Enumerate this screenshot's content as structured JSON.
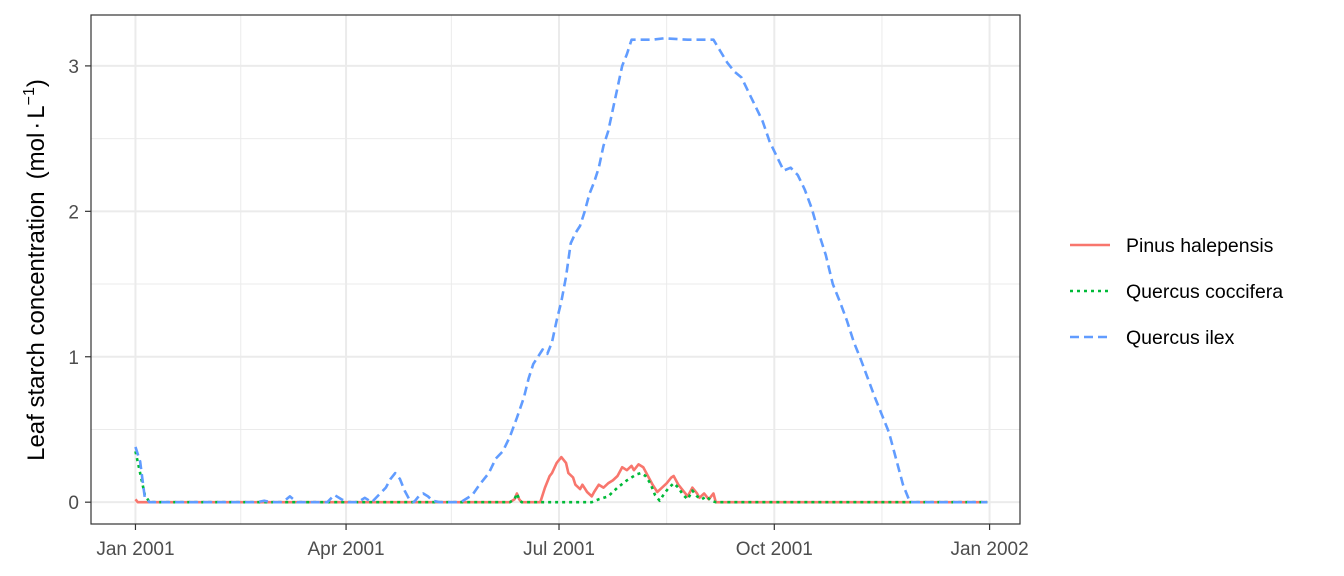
{
  "chart_data": {
    "type": "line",
    "title": "",
    "xlabel": "",
    "ylabel": "Leaf starch concentration (mol·L⁻¹)",
    "ylabel_parts": {
      "text": "Leaf starch concentration",
      "unit_prefix": "(mol",
      "unit_dot": "·",
      "unit_L": "L",
      "unit_exp": "−1",
      "unit_suffix": ")"
    },
    "x_axis": {
      "type": "date",
      "range": [
        "2000-12-13",
        "2002-01-14"
      ],
      "ticks": [
        "2001-01-01",
        "2001-04-01",
        "2001-07-01",
        "2001-10-01",
        "2002-01-01"
      ],
      "tick_labels": [
        "Jan 2001",
        "Apr 2001",
        "Jul 2001",
        "Oct 2001",
        "Jan 2002"
      ],
      "minor_ticks": [
        "2001-02-15",
        "2001-05-16",
        "2001-08-16",
        "2001-11-16"
      ]
    },
    "y_axis": {
      "range": [
        -0.15,
        3.35
      ],
      "ticks": [
        0,
        1,
        2,
        3
      ],
      "tick_labels": [
        "0",
        "1",
        "2",
        "3"
      ],
      "minor_ticks": [
        0.5,
        1.5,
        2.5
      ]
    },
    "grid": true,
    "legend_position": "right",
    "series": [
      {
        "name": "Pinus halepensis",
        "color": "#F8766D",
        "dash": "solid",
        "points": [
          [
            "2001-01-01",
            0.02
          ],
          [
            "2001-01-02",
            0.0
          ],
          [
            "2001-06-10",
            0.0
          ],
          [
            "2001-06-12",
            0.02
          ],
          [
            "2001-06-13",
            0.06
          ],
          [
            "2001-06-14",
            0.02
          ],
          [
            "2001-06-15",
            0.0
          ],
          [
            "2001-06-23",
            0.0
          ],
          [
            "2001-06-25",
            0.1
          ],
          [
            "2001-06-27",
            0.18
          ],
          [
            "2001-06-28",
            0.2
          ],
          [
            "2001-06-30",
            0.27
          ],
          [
            "2001-07-02",
            0.31
          ],
          [
            "2001-07-04",
            0.27
          ],
          [
            "2001-07-05",
            0.2
          ],
          [
            "2001-07-07",
            0.17
          ],
          [
            "2001-07-08",
            0.12
          ],
          [
            "2001-07-10",
            0.09
          ],
          [
            "2001-07-11",
            0.12
          ],
          [
            "2001-07-13",
            0.07
          ],
          [
            "2001-07-15",
            0.04
          ],
          [
            "2001-07-16",
            0.07
          ],
          [
            "2001-07-18",
            0.12
          ],
          [
            "2001-07-20",
            0.1
          ],
          [
            "2001-07-22",
            0.13
          ],
          [
            "2001-07-24",
            0.15
          ],
          [
            "2001-07-26",
            0.18
          ],
          [
            "2001-07-28",
            0.24
          ],
          [
            "2001-07-30",
            0.22
          ],
          [
            "2001-08-01",
            0.25
          ],
          [
            "2001-08-02",
            0.22
          ],
          [
            "2001-08-04",
            0.26
          ],
          [
            "2001-08-06",
            0.24
          ],
          [
            "2001-08-08",
            0.18
          ],
          [
            "2001-08-10",
            0.12
          ],
          [
            "2001-08-12",
            0.07
          ],
          [
            "2001-08-14",
            0.1
          ],
          [
            "2001-08-16",
            0.13
          ],
          [
            "2001-08-18",
            0.17
          ],
          [
            "2001-08-19",
            0.18
          ],
          [
            "2001-08-21",
            0.12
          ],
          [
            "2001-08-23",
            0.08
          ],
          [
            "2001-08-25",
            0.04
          ],
          [
            "2001-08-27",
            0.1
          ],
          [
            "2001-08-29",
            0.06
          ],
          [
            "2001-08-30",
            0.03
          ],
          [
            "2001-09-01",
            0.06
          ],
          [
            "2001-09-03",
            0.02
          ],
          [
            "2001-09-05",
            0.06
          ],
          [
            "2001-09-06",
            0.0
          ],
          [
            "2001-12-31",
            0.0
          ]
        ]
      },
      {
        "name": "Quercus coccifera",
        "color": "#00BA38",
        "dash": "dotted",
        "points": [
          [
            "2001-01-01",
            0.35
          ],
          [
            "2001-01-03",
            0.2
          ],
          [
            "2001-01-05",
            0.05
          ],
          [
            "2001-01-07",
            0.0
          ],
          [
            "2001-06-10",
            0.0
          ],
          [
            "2001-06-12",
            0.02
          ],
          [
            "2001-06-13",
            0.06
          ],
          [
            "2001-06-14",
            0.02
          ],
          [
            "2001-06-15",
            0.0
          ],
          [
            "2001-07-15",
            0.0
          ],
          [
            "2001-07-18",
            0.02
          ],
          [
            "2001-07-22",
            0.04
          ],
          [
            "2001-07-26",
            0.1
          ],
          [
            "2001-07-30",
            0.15
          ],
          [
            "2001-08-03",
            0.19
          ],
          [
            "2001-08-05",
            0.2
          ],
          [
            "2001-08-07",
            0.18
          ],
          [
            "2001-08-09",
            0.13
          ],
          [
            "2001-08-11",
            0.05
          ],
          [
            "2001-08-13",
            0.01
          ],
          [
            "2001-08-15",
            0.06
          ],
          [
            "2001-08-17",
            0.1
          ],
          [
            "2001-08-19",
            0.13
          ],
          [
            "2001-08-21",
            0.1
          ],
          [
            "2001-08-23",
            0.05
          ],
          [
            "2001-08-25",
            0.02
          ],
          [
            "2001-08-27",
            0.08
          ],
          [
            "2001-08-29",
            0.04
          ],
          [
            "2001-08-31",
            0.02
          ],
          [
            "2001-09-02",
            0.04
          ],
          [
            "2001-09-04",
            0.01
          ],
          [
            "2001-09-06",
            0.0
          ],
          [
            "2001-12-31",
            0.0
          ]
        ]
      },
      {
        "name": "Quercus ilex",
        "color": "#619CFF",
        "dash": "dashed",
        "points": [
          [
            "2001-01-01",
            0.38
          ],
          [
            "2001-01-03",
            0.28
          ],
          [
            "2001-01-05",
            0.03
          ],
          [
            "2001-01-07",
            0.0
          ],
          [
            "2001-01-20",
            0.0
          ],
          [
            "2001-02-22",
            0.0
          ],
          [
            "2001-02-25",
            0.01
          ],
          [
            "2001-02-28",
            0.0
          ],
          [
            "2001-03-05",
            0.0
          ],
          [
            "2001-03-08",
            0.04
          ],
          [
            "2001-03-11",
            0.0
          ],
          [
            "2001-03-24",
            0.0
          ],
          [
            "2001-03-27",
            0.05
          ],
          [
            "2001-03-30",
            0.02
          ],
          [
            "2001-04-02",
            0.0
          ],
          [
            "2001-04-06",
            0.0
          ],
          [
            "2001-04-09",
            0.03
          ],
          [
            "2001-04-12",
            0.0
          ],
          [
            "2001-04-15",
            0.05
          ],
          [
            "2001-04-18",
            0.1
          ],
          [
            "2001-04-20",
            0.16
          ],
          [
            "2001-04-22",
            0.2
          ],
          [
            "2001-04-24",
            0.16
          ],
          [
            "2001-04-26",
            0.08
          ],
          [
            "2001-04-28",
            0.02
          ],
          [
            "2001-04-30",
            0.0
          ],
          [
            "2001-05-02",
            0.04
          ],
          [
            "2001-05-04",
            0.06
          ],
          [
            "2001-05-06",
            0.04
          ],
          [
            "2001-05-08",
            0.01
          ],
          [
            "2001-05-11",
            0.0
          ],
          [
            "2001-05-20",
            0.0
          ],
          [
            "2001-05-25",
            0.05
          ],
          [
            "2001-05-28",
            0.12
          ],
          [
            "2001-06-01",
            0.2
          ],
          [
            "2001-06-04",
            0.3
          ],
          [
            "2001-06-07",
            0.35
          ],
          [
            "2001-06-10",
            0.45
          ],
          [
            "2001-06-13",
            0.58
          ],
          [
            "2001-06-16",
            0.72
          ],
          [
            "2001-06-18",
            0.85
          ],
          [
            "2001-06-20",
            0.95
          ],
          [
            "2001-06-22",
            1.0
          ],
          [
            "2001-06-24",
            1.05
          ],
          [
            "2001-06-26",
            1.02
          ],
          [
            "2001-06-28",
            1.1
          ],
          [
            "2001-06-30",
            1.25
          ],
          [
            "2001-07-02",
            1.38
          ],
          [
            "2001-07-04",
            1.55
          ],
          [
            "2001-07-06",
            1.78
          ],
          [
            "2001-07-08",
            1.85
          ],
          [
            "2001-07-10",
            1.9
          ],
          [
            "2001-07-12",
            2.0
          ],
          [
            "2001-07-14",
            2.12
          ],
          [
            "2001-07-16",
            2.2
          ],
          [
            "2001-07-18",
            2.3
          ],
          [
            "2001-07-20",
            2.45
          ],
          [
            "2001-07-22",
            2.55
          ],
          [
            "2001-07-24",
            2.7
          ],
          [
            "2001-07-26",
            2.85
          ],
          [
            "2001-07-28",
            3.0
          ],
          [
            "2001-07-30",
            3.08
          ],
          [
            "2001-08-01",
            3.18
          ],
          [
            "2001-08-10",
            3.18
          ],
          [
            "2001-08-15",
            3.19
          ],
          [
            "2001-08-25",
            3.18
          ],
          [
            "2001-09-05",
            3.18
          ],
          [
            "2001-09-08",
            3.1
          ],
          [
            "2001-09-11",
            3.02
          ],
          [
            "2001-09-14",
            2.96
          ],
          [
            "2001-09-17",
            2.92
          ],
          [
            "2001-09-20",
            2.82
          ],
          [
            "2001-09-23",
            2.72
          ],
          [
            "2001-09-26",
            2.62
          ],
          [
            "2001-09-29",
            2.48
          ],
          [
            "2001-10-02",
            2.38
          ],
          [
            "2001-10-05",
            2.28
          ],
          [
            "2001-10-08",
            2.3
          ],
          [
            "2001-10-11",
            2.25
          ],
          [
            "2001-10-14",
            2.15
          ],
          [
            "2001-10-17",
            2.02
          ],
          [
            "2001-10-20",
            1.85
          ],
          [
            "2001-10-23",
            1.7
          ],
          [
            "2001-10-26",
            1.5
          ],
          [
            "2001-10-29",
            1.38
          ],
          [
            "2001-11-01",
            1.25
          ],
          [
            "2001-11-04",
            1.1
          ],
          [
            "2001-11-07",
            0.98
          ],
          [
            "2001-11-10",
            0.85
          ],
          [
            "2001-11-13",
            0.72
          ],
          [
            "2001-11-16",
            0.6
          ],
          [
            "2001-11-19",
            0.48
          ],
          [
            "2001-11-22",
            0.3
          ],
          [
            "2001-11-25",
            0.12
          ],
          [
            "2001-11-28",
            0.0
          ],
          [
            "2001-12-31",
            0.0
          ]
        ]
      }
    ]
  }
}
